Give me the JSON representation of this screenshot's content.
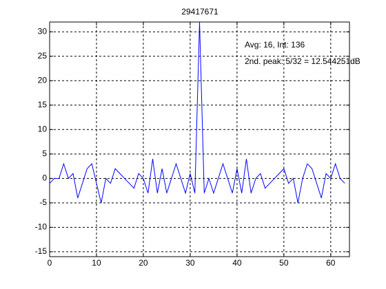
{
  "chart_data": {
    "type": "line",
    "title": "29417671",
    "annotations": [
      "Avg: 16, Int: 136",
      "2nd. peak: 5/32 = 12.544251dB"
    ],
    "x": [
      0,
      1,
      2,
      3,
      4,
      5,
      6,
      7,
      8,
      9,
      10,
      11,
      12,
      13,
      14,
      15,
      16,
      17,
      18,
      19,
      20,
      21,
      22,
      23,
      24,
      25,
      26,
      27,
      28,
      29,
      30,
      31,
      32,
      33,
      34,
      35,
      36,
      37,
      38,
      39,
      40,
      41,
      42,
      43,
      44,
      45,
      46,
      47,
      48,
      49,
      50,
      51,
      52,
      53,
      54,
      55,
      56,
      57,
      58,
      59,
      60,
      61,
      62,
      63
    ],
    "series": [
      {
        "color": "#0000ff",
        "values": [
          -1,
          0,
          0,
          3,
          0,
          1,
          -4,
          -1,
          2,
          3,
          -1,
          -5,
          0,
          -1,
          2,
          1,
          0,
          -1,
          -2,
          1,
          0,
          -3,
          4,
          -3,
          2,
          -3,
          0,
          3,
          0,
          -3,
          1,
          -3,
          32,
          -3,
          0,
          -3,
          0,
          3,
          0,
          -3,
          2,
          -3,
          4,
          -3,
          0,
          1,
          -2,
          -1,
          0,
          1,
          2,
          -1,
          0,
          -5,
          0,
          3,
          2,
          -1,
          -4,
          1,
          0,
          3,
          0,
          -1
        ]
      }
    ],
    "xlim": [
      0,
      64
    ],
    "ylim": [
      -16,
      32
    ],
    "xticks": [
      0,
      10,
      20,
      30,
      40,
      50,
      60
    ],
    "yticks": [
      -15,
      -10,
      -5,
      0,
      5,
      10,
      15,
      20,
      25,
      30
    ],
    "grid": true
  }
}
